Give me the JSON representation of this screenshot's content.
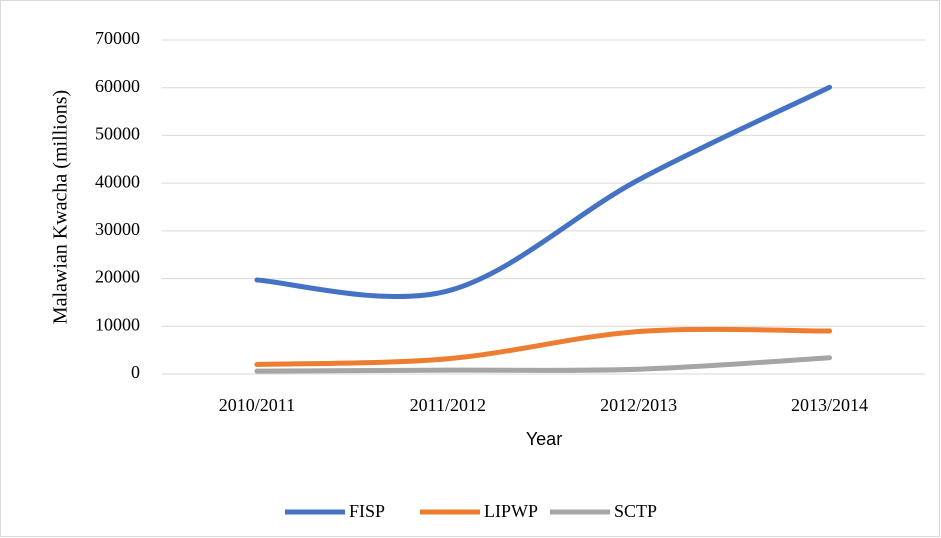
{
  "chart_data": {
    "type": "line",
    "xlabel": "Year",
    "ylabel": "Malawian Kwacha (millions)",
    "categories": [
      "2010/2011",
      "2011/2012",
      "2012/2013",
      "2013/2014"
    ],
    "series": [
      {
        "name": "FISP",
        "color": "#4472c4",
        "values": [
          19700,
          17400,
          40700,
          60100
        ]
      },
      {
        "name": "LIPWP",
        "color": "#ed7d31",
        "values": [
          2000,
          3200,
          8900,
          9000
        ]
      },
      {
        "name": "SCTP",
        "color": "#a5a5a5",
        "values": [
          600,
          800,
          1000,
          3400
        ]
      }
    ],
    "ylim": [
      0,
      70000
    ],
    "yticks": [
      0,
      10000,
      20000,
      30000,
      40000,
      50000,
      60000,
      70000
    ],
    "grid": true,
    "legend": "bottom",
    "smooth": true
  }
}
